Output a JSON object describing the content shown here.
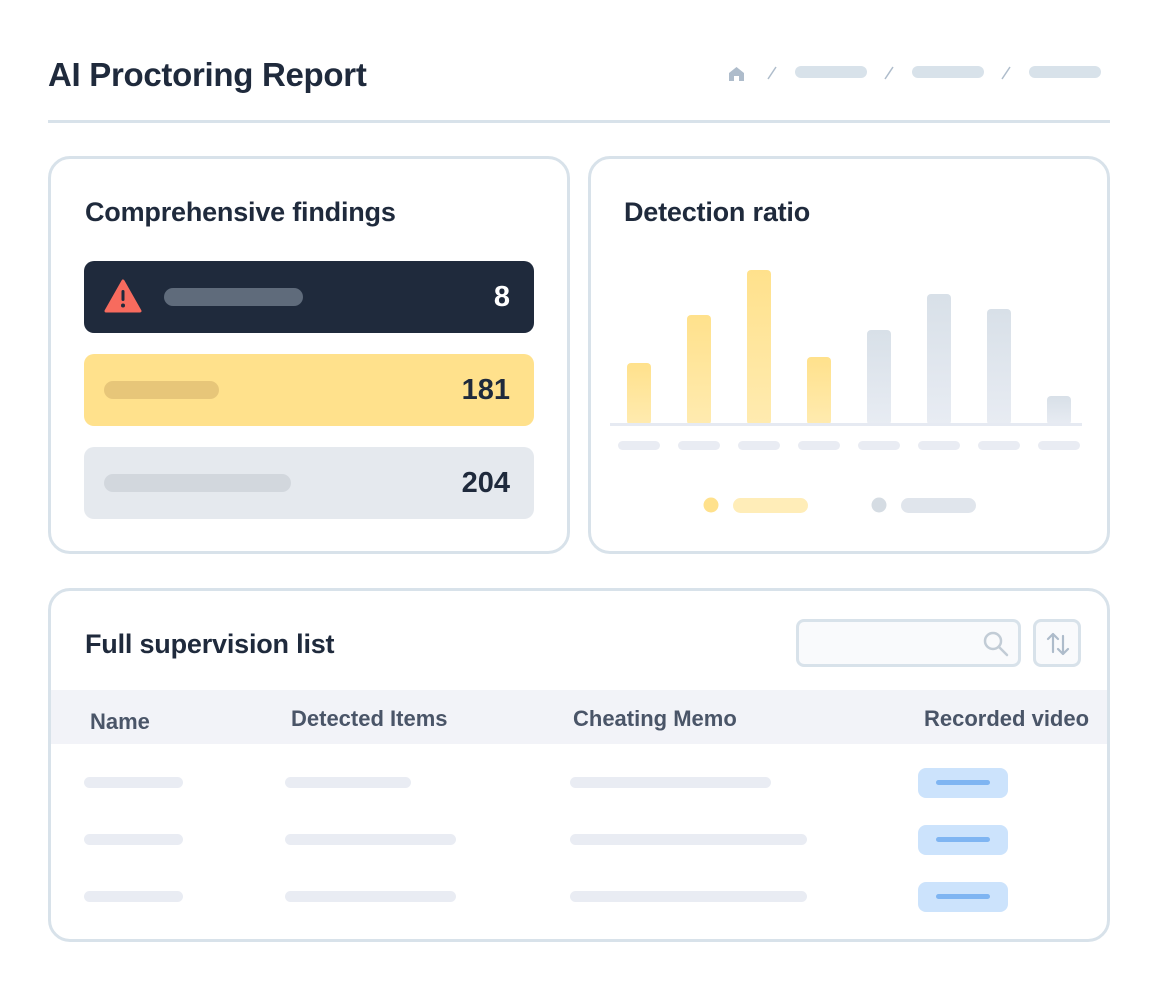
{
  "header": {
    "title": "AI Proctoring Report",
    "breadcrumb_icon": "home-icon"
  },
  "findings": {
    "title": "Comprehensive findings",
    "items": [
      {
        "value": "8",
        "icon": "warning-icon",
        "color": "#1f2a3c"
      },
      {
        "value": "181",
        "color": "#ffe18c"
      },
      {
        "value": "204",
        "color": "#e5e9ee"
      }
    ]
  },
  "detection": {
    "title": "Detection ratio"
  },
  "chart_data": {
    "type": "bar",
    "title": "Detection ratio",
    "series": [
      {
        "name": "",
        "color": "#ffe18c",
        "values": [
          62,
          110,
          155,
          68,
          null,
          null,
          null,
          null
        ]
      },
      {
        "name": "",
        "color": "#dbe1e8",
        "values": [
          null,
          null,
          null,
          null,
          95,
          131,
          116,
          29
        ]
      }
    ],
    "categories": [
      "",
      "",
      "",
      "",
      "",
      "",
      "",
      ""
    ],
    "legend": "bottom"
  },
  "list": {
    "title": "Full supervision list",
    "search_placeholder": "",
    "columns": [
      "Name",
      "Detected Items",
      "Cheating Memo",
      "Recorded video"
    ]
  },
  "colors": {
    "accent": "#ffe18c",
    "dark": "#1f2a3c",
    "border": "#d8e2ea",
    "video": "#cce3fc"
  }
}
